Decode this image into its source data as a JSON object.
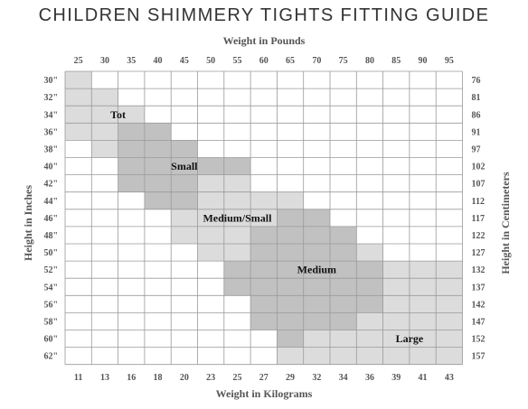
{
  "title": "CHILDREN SHIMMERY TIGHTS FITTING GUIDE",
  "chart_data": {
    "type": "heatmap",
    "title": "CHILDREN SHIMMERY TIGHTS FITTING GUIDE",
    "x_top_label": "Weight in Pounds",
    "x_bottom_label": "Weight in Kilograms",
    "y_left_label": "Height in Inches",
    "y_right_label": "Height in Centimeters",
    "x_top_ticks": [
      "25",
      "30",
      "35",
      "40",
      "45",
      "50",
      "55",
      "60",
      "65",
      "70",
      "75",
      "80",
      "85",
      "90",
      "95"
    ],
    "x_bottom_ticks": [
      "11",
      "13",
      "16",
      "18",
      "20",
      "23",
      "25",
      "27",
      "29",
      "32",
      "34",
      "36",
      "39",
      "41",
      "43"
    ],
    "y_left_ticks": [
      "30\"",
      "32\"",
      "34\"",
      "36\"",
      "38\"",
      "40\"",
      "42\"",
      "44\"",
      "46\"",
      "48\"",
      "50\"",
      "52\"",
      "54\"",
      "56\"",
      "58\"",
      "60\"",
      "62\""
    ],
    "y_right_ticks": [
      "76",
      "81",
      "86",
      "91",
      "97",
      "102",
      "107",
      "112",
      "117",
      "122",
      "127",
      "132",
      "137",
      "142",
      "147",
      "152",
      "157"
    ],
    "colors": {
      "light": "#dcdcdc",
      "dark": "#c1c1c1",
      "empty": "#ffffff",
      "grid": "#9a9a9a"
    },
    "grid_codes": [
      "100000000000000",
      "110000000000000",
      "111000000000000",
      "112200000000000",
      "012220000000000",
      "002222200000000",
      "002221100000000",
      "000221111000000",
      "000011112200000",
      "000011122220000",
      "000001122221000",
      "000000222222111",
      "000000222222111",
      "000000022222111",
      "000000022221111",
      "000000002111111",
      "000000001111111"
    ],
    "regions": [
      {
        "name": "Tot",
        "col": 1.5,
        "row": 2.0
      },
      {
        "name": "Small",
        "col": 4.0,
        "row": 5.0
      },
      {
        "name": "Medium/Small",
        "col": 6.0,
        "row": 8.0
      },
      {
        "name": "Medium",
        "col": 9.0,
        "row": 11.0
      },
      {
        "name": "Large",
        "col": 12.5,
        "row": 15.0
      }
    ]
  }
}
